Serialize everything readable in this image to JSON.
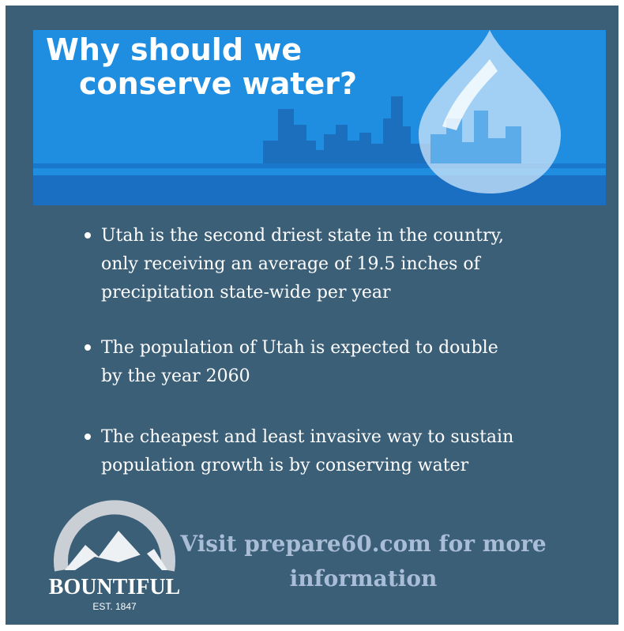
{
  "header": {
    "title_lines": [
      "Why should we",
      "conserve water?"
    ]
  },
  "bullets": [
    {
      "lines": [
        "Utah is the second driest state in the country,",
        "only receiving an average of 19.5 inches of",
        "precipitation state-wide per year"
      ]
    },
    {
      "lines": [
        "The population of Utah is expected to double",
        "by the year 2060"
      ]
    },
    {
      "lines": [
        "The cheapest and least invasive way to sustain",
        "population growth is by conserving water"
      ]
    }
  ],
  "logo": {
    "name": "BOUNTIFUL",
    "established": "EST. 1847"
  },
  "footer": {
    "lines": [
      "Visit prepare60.com for more",
      "information"
    ]
  }
}
